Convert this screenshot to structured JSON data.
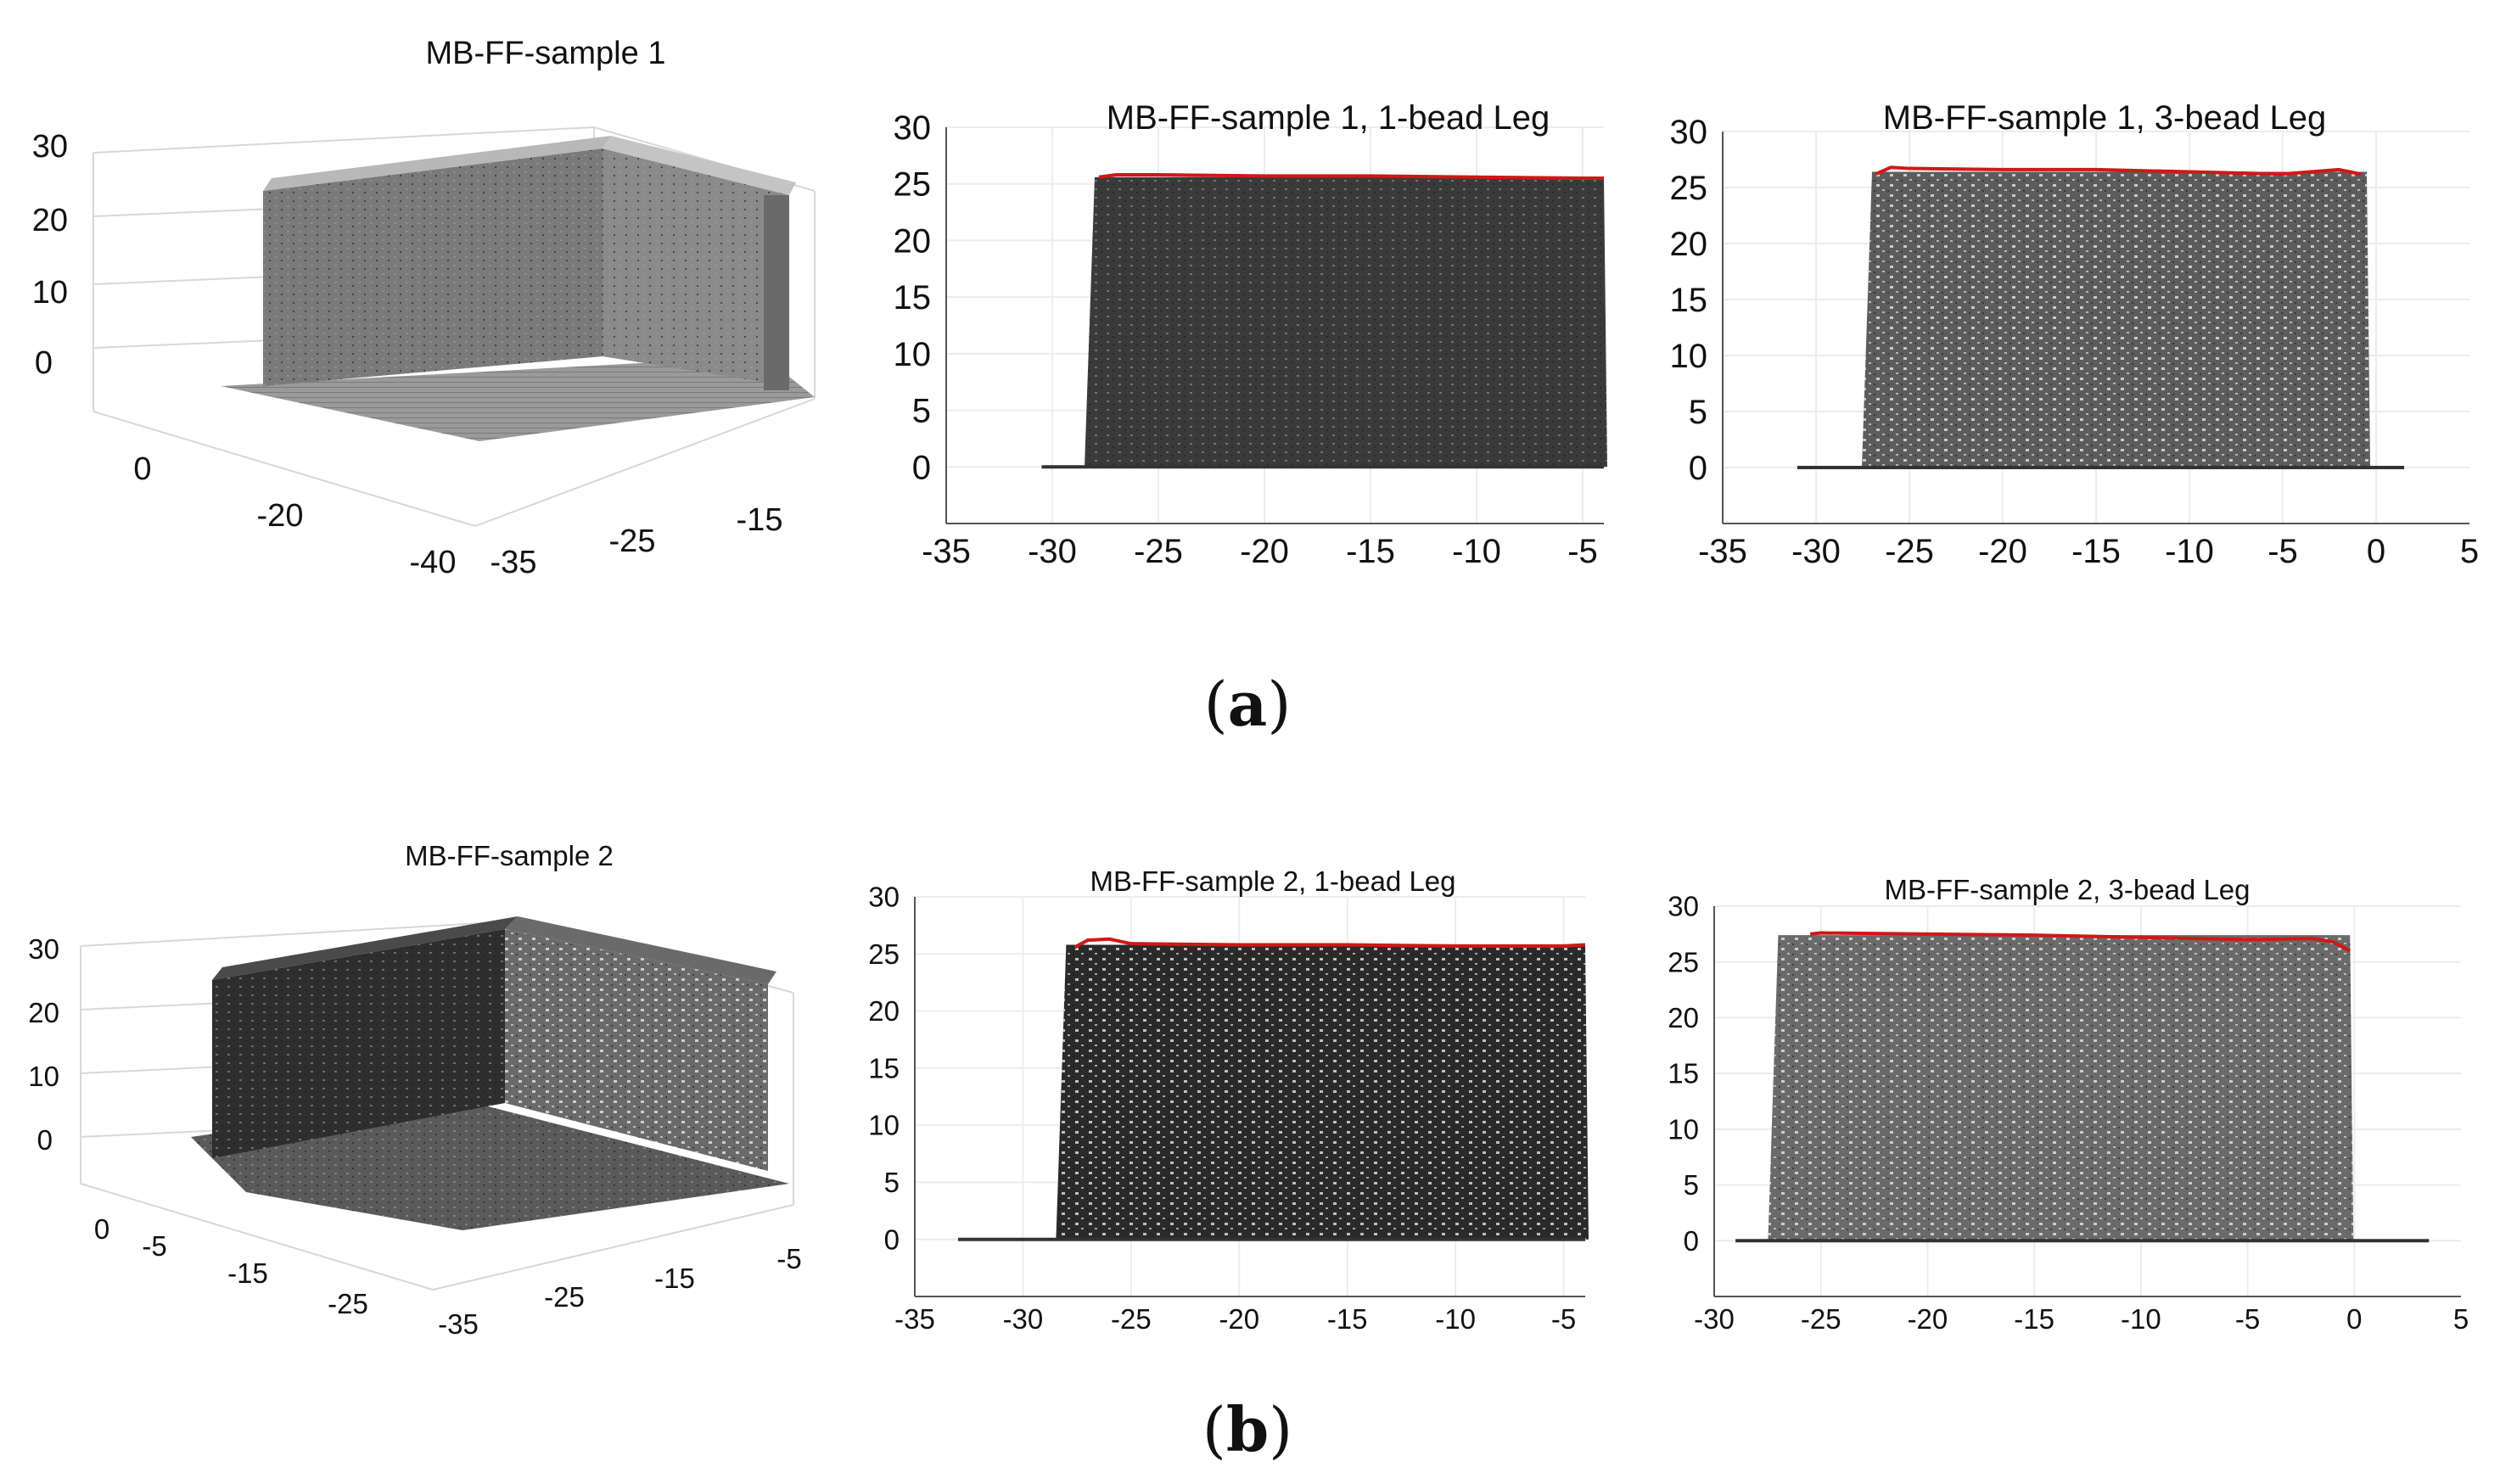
{
  "panel_labels": {
    "a_open": "(",
    "a_letter": "a",
    "a_close": ")",
    "b_open": "(",
    "b_letter": "b",
    "b_close": ")"
  },
  "chart_data": [
    {
      "id": "a3d",
      "type": "scatter",
      "title": "MB-FF-sample 1",
      "projection": "3d",
      "z_ticks": [
        "30",
        "20",
        "10",
        "0"
      ],
      "y_ticks": [
        "0",
        "-20",
        "-40"
      ],
      "x_ticks": [
        "-35",
        "-25",
        "-15"
      ],
      "colors": {
        "points": "#6f6f6f"
      }
    },
    {
      "id": "a1",
      "type": "scatter",
      "title": "MB-FF-sample 1, 1-bead Leg",
      "xlim": [
        -35,
        -4
      ],
      "ylim": [
        -5,
        30
      ],
      "xticks": [
        -35,
        -30,
        -25,
        -20,
        -15,
        -10,
        -5
      ],
      "yticks": [
        0,
        5,
        10,
        15,
        20,
        25,
        30
      ],
      "wall": {
        "x_start": -28,
        "x_end": -4,
        "top": 25.6,
        "base": 0
      },
      "base_line": {
        "x_start": -30.5,
        "x_end": -4
      },
      "top_profile": {
        "x": [
          -27.8,
          -27,
          -25,
          -20,
          -15,
          -10,
          -5,
          -4
        ],
        "y": [
          25.6,
          25.8,
          25.8,
          25.7,
          25.7,
          25.6,
          25.5,
          25.5
        ]
      },
      "colors": {
        "fill": "#3a3a3a",
        "profile": "#d01818"
      }
    },
    {
      "id": "a2",
      "type": "scatter",
      "title": "MB-FF-sample 1, 3-bead Leg",
      "xlim": [
        -35,
        5
      ],
      "ylim": [
        -5,
        30
      ],
      "xticks": [
        -35,
        -30,
        -25,
        -20,
        -15,
        -10,
        -5,
        0,
        5
      ],
      "yticks": [
        0,
        5,
        10,
        15,
        20,
        25,
        30
      ],
      "wall": {
        "x_start": -27,
        "x_end": -0.5,
        "top": 26.4,
        "base": 0
      },
      "base_line": {
        "x_start": -31,
        "x_end": 1.5
      },
      "top_profile": {
        "x": [
          -26.8,
          -26,
          -25,
          -20,
          -15,
          -10,
          -5,
          -2,
          -0.8
        ],
        "y": [
          26.2,
          26.8,
          26.7,
          26.6,
          26.6,
          26.4,
          26.2,
          26.6,
          26.2
        ]
      },
      "colors": {
        "fill": "#5c5c5c",
        "profile": "#d01818"
      }
    },
    {
      "id": "b3d",
      "type": "scatter",
      "title": "MB-FF-sample 2",
      "projection": "3d",
      "z_ticks": [
        "30",
        "20",
        "10",
        "0"
      ],
      "y_ticks": [
        "0",
        "-5",
        "-15",
        "-25"
      ],
      "x_ticks": [
        "-35",
        "-25",
        "-15",
        "-5"
      ],
      "colors": {
        "points": "#4a4a4a"
      }
    },
    {
      "id": "b1",
      "type": "scatter",
      "title": "MB-FF-sample 2, 1-bead Leg",
      "xlim": [
        -35,
        -4
      ],
      "ylim": [
        -5,
        30
      ],
      "xticks": [
        -35,
        -30,
        -25,
        -20,
        -15,
        -10,
        -5
      ],
      "yticks": [
        0,
        5,
        10,
        15,
        20,
        25,
        30
      ],
      "wall": {
        "x_start": -28,
        "x_end": -4,
        "top": 25.8,
        "base": 0
      },
      "base_line": {
        "x_start": -33,
        "x_end": -4
      },
      "top_profile": {
        "x": [
          -27.6,
          -27,
          -26,
          -25,
          -20,
          -15,
          -10,
          -5,
          -4
        ],
        "y": [
          25.6,
          26.2,
          26.3,
          25.9,
          25.8,
          25.8,
          25.7,
          25.7,
          25.8
        ]
      },
      "colors": {
        "fill": "#2a2a2a",
        "profile": "#d01818"
      }
    },
    {
      "id": "b2",
      "type": "scatter",
      "title": "MB-FF-sample 2, 3-bead Leg",
      "xlim": [
        -30,
        5
      ],
      "ylim": [
        -5,
        30
      ],
      "xticks": [
        -30,
        -25,
        -20,
        -15,
        -10,
        -5,
        0,
        5
      ],
      "yticks": [
        0,
        5,
        10,
        15,
        20,
        25,
        30
      ],
      "wall": {
        "x_start": -27,
        "x_end": -0.2,
        "top": 27.4,
        "base": 0
      },
      "base_line": {
        "x_start": -29,
        "x_end": 3.5
      },
      "top_profile": {
        "x": [
          -25.5,
          -25,
          -20,
          -15,
          -10,
          -5,
          -2,
          -1,
          -0.2
        ],
        "y": [
          27.5,
          27.6,
          27.5,
          27.4,
          27.2,
          27.0,
          27.1,
          26.8,
          26.0
        ]
      },
      "colors": {
        "fill": "#6a6a6a",
        "profile": "#d01818"
      }
    }
  ]
}
